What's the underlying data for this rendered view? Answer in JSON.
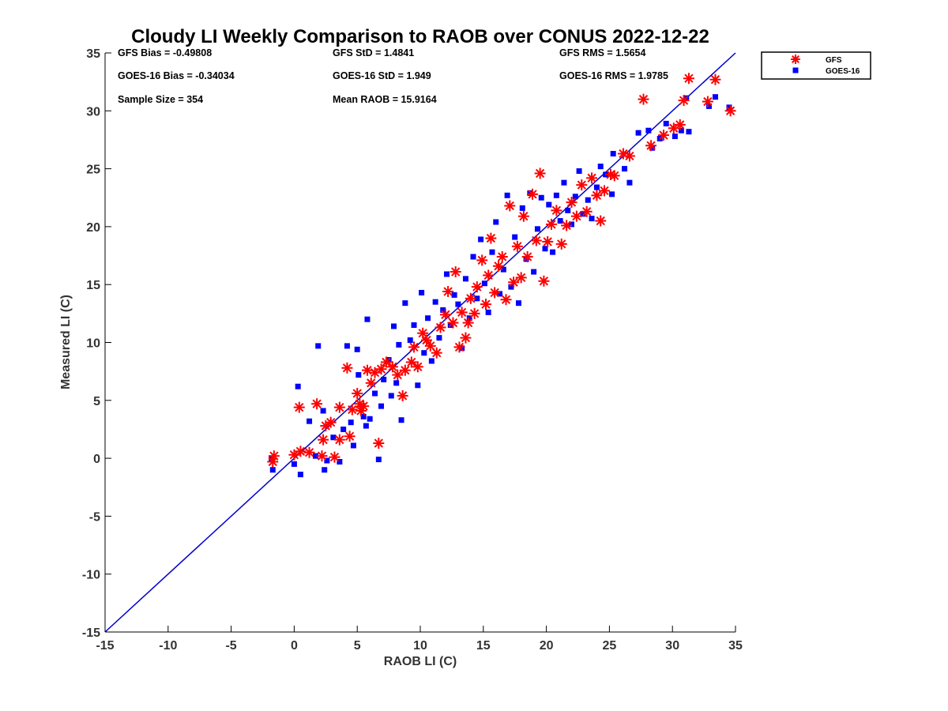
{
  "chart_data": {
    "type": "scatter",
    "title": "Cloudy LI Weekly Comparison to RAOB over CONUS 2022-12-22",
    "xlabel": "RAOB LI (C)",
    "ylabel": "Measured LI (C)",
    "xlim": [
      -15,
      35
    ],
    "ylim": [
      -15,
      35
    ],
    "xticks": [
      "-15",
      "-10",
      "-5",
      "0",
      "5",
      "10",
      "15",
      "20",
      "25",
      "30",
      "35"
    ],
    "yticks": [
      "-15",
      "-10",
      "-5",
      "0",
      "5",
      "10",
      "15",
      "20",
      "25",
      "30",
      "35"
    ],
    "grid": false,
    "legend_position": "outside top-right",
    "stats": {
      "gfs_bias": "GFS Bias = -0.49808",
      "goes_bias": "GOES-16 Bias = -0.34034",
      "sample_size": "Sample Size = 354",
      "gfs_std": "GFS StD = 1.4841",
      "goes_std": "GOES-16 StD = 1.949",
      "mean_raob": "Mean RAOB = 15.9164",
      "gfs_rms": "GFS RMS = 1.5654",
      "goes_rms": "GOES-16 RMS = 1.9785"
    },
    "reference_line": {
      "x": [
        -15,
        35
      ],
      "y": [
        -15,
        35
      ],
      "color": "#0000cc"
    },
    "series": [
      {
        "name": "GFS",
        "marker": "asterisk",
        "color": "#ff0000",
        "points": [
          [
            -1.7,
            -0.3
          ],
          [
            -1.6,
            0.2
          ],
          [
            0,
            0.3
          ],
          [
            0.4,
            4.4
          ],
          [
            0.5,
            0.6
          ],
          [
            1.2,
            0.5
          ],
          [
            1.8,
            4.7
          ],
          [
            2.2,
            0.2
          ],
          [
            2.3,
            1.6
          ],
          [
            2.5,
            2.8
          ],
          [
            2.9,
            3.1
          ],
          [
            3.2,
            0.1
          ],
          [
            3.6,
            4.4
          ],
          [
            3.6,
            1.6
          ],
          [
            4.2,
            7.8
          ],
          [
            4.4,
            1.9
          ],
          [
            4.6,
            4.2
          ],
          [
            5,
            5.6
          ],
          [
            5.2,
            4.7
          ],
          [
            5.3,
            4.1
          ],
          [
            5.5,
            4.5
          ],
          [
            5.8,
            7.6
          ],
          [
            6.1,
            6.5
          ],
          [
            6.4,
            7.4
          ],
          [
            6.7,
            1.3
          ],
          [
            6.9,
            7.7
          ],
          [
            7.3,
            8.3
          ],
          [
            7.8,
            7.9
          ],
          [
            8.2,
            7.2
          ],
          [
            8.6,
            5.4
          ],
          [
            8.8,
            7.6
          ],
          [
            9.3,
            8.3
          ],
          [
            9.5,
            9.6
          ],
          [
            9.8,
            7.9
          ],
          [
            10.2,
            10.8
          ],
          [
            10.5,
            10.2
          ],
          [
            10.8,
            9.7
          ],
          [
            11.3,
            9.1
          ],
          [
            11.6,
            11.3
          ],
          [
            12,
            12.4
          ],
          [
            12.2,
            14.4
          ],
          [
            12.6,
            11.7
          ],
          [
            12.8,
            16.1
          ],
          [
            13.1,
            9.6
          ],
          [
            13.3,
            12.6
          ],
          [
            13.6,
            10.4
          ],
          [
            13.8,
            11.7
          ],
          [
            14,
            13.8
          ],
          [
            14.3,
            12.5
          ],
          [
            14.5,
            14.8
          ],
          [
            14.9,
            17.1
          ],
          [
            15.2,
            13.3
          ],
          [
            15.4,
            15.8
          ],
          [
            15.6,
            19
          ],
          [
            15.9,
            14.3
          ],
          [
            16.2,
            16.6
          ],
          [
            16.5,
            17.4
          ],
          [
            16.8,
            13.7
          ],
          [
            17.1,
            21.8
          ],
          [
            17.4,
            15.2
          ],
          [
            17.7,
            18.3
          ],
          [
            18,
            15.6
          ],
          [
            18.2,
            20.9
          ],
          [
            18.5,
            17.4
          ],
          [
            18.9,
            22.8
          ],
          [
            19.2,
            18.8
          ],
          [
            19.5,
            24.6
          ],
          [
            19.8,
            15.3
          ],
          [
            20.1,
            18.7
          ],
          [
            20.4,
            20.2
          ],
          [
            20.8,
            21.4
          ],
          [
            21.2,
            18.5
          ],
          [
            21.6,
            20.1
          ],
          [
            22,
            22.1
          ],
          [
            22.4,
            20.9
          ],
          [
            22.8,
            23.6
          ],
          [
            23.2,
            21.3
          ],
          [
            23.6,
            24.2
          ],
          [
            24,
            22.7
          ],
          [
            24.3,
            20.5
          ],
          [
            24.6,
            23.1
          ],
          [
            25.1,
            24.5
          ],
          [
            25.4,
            24.4
          ],
          [
            26.1,
            26.3
          ],
          [
            26.6,
            26.1
          ],
          [
            27.7,
            31
          ],
          [
            28.3,
            27
          ],
          [
            29.3,
            27.9
          ],
          [
            30.1,
            28.5
          ],
          [
            30.6,
            28.8
          ],
          [
            30.9,
            30.9
          ],
          [
            31.3,
            32.8
          ],
          [
            32.8,
            30.8
          ],
          [
            33.4,
            32.7
          ],
          [
            34.6,
            30
          ]
        ]
      },
      {
        "name": "GOES-16",
        "marker": "square",
        "color": "#0000ff",
        "points": [
          [
            -1.8,
            -0.1
          ],
          [
            -1.7,
            -1
          ],
          [
            0,
            -0.5
          ],
          [
            0.3,
            6.2
          ],
          [
            0.5,
            -1.4
          ],
          [
            1.2,
            3.2
          ],
          [
            1.7,
            0.2
          ],
          [
            1.9,
            9.7
          ],
          [
            2.3,
            4.1
          ],
          [
            2.4,
            -1
          ],
          [
            2.6,
            -0.2
          ],
          [
            3.1,
            1.8
          ],
          [
            3.6,
            -0.3
          ],
          [
            3.9,
            2.5
          ],
          [
            4.2,
            9.7
          ],
          [
            4.5,
            3.1
          ],
          [
            4.7,
            1.1
          ],
          [
            5,
            9.4
          ],
          [
            5.1,
            7.2
          ],
          [
            5.5,
            3.6
          ],
          [
            5.7,
            2.8
          ],
          [
            5.8,
            12
          ],
          [
            6,
            3.4
          ],
          [
            6.4,
            5.6
          ],
          [
            6.7,
            -0.1
          ],
          [
            6.9,
            4.5
          ],
          [
            7.1,
            6.8
          ],
          [
            7.5,
            8.5
          ],
          [
            7.7,
            5.4
          ],
          [
            7.9,
            11.4
          ],
          [
            8.1,
            6.5
          ],
          [
            8.3,
            9.8
          ],
          [
            8.5,
            3.3
          ],
          [
            8.8,
            13.4
          ],
          [
            9.2,
            10.2
          ],
          [
            9.5,
            11.5
          ],
          [
            9.8,
            6.3
          ],
          [
            10.1,
            14.3
          ],
          [
            10.3,
            9.1
          ],
          [
            10.6,
            12.1
          ],
          [
            10.9,
            8.4
          ],
          [
            11.2,
            13.5
          ],
          [
            11.5,
            10.4
          ],
          [
            11.8,
            12.8
          ],
          [
            12.1,
            15.9
          ],
          [
            12.4,
            11.5
          ],
          [
            12.7,
            14.1
          ],
          [
            13,
            13.3
          ],
          [
            13.3,
            9.5
          ],
          [
            13.6,
            15.5
          ],
          [
            13.9,
            12.1
          ],
          [
            14.2,
            17.4
          ],
          [
            14.5,
            13.8
          ],
          [
            14.8,
            18.9
          ],
          [
            15.1,
            15.1
          ],
          [
            15.4,
            12.6
          ],
          [
            15.7,
            17.8
          ],
          [
            16,
            20.4
          ],
          [
            16.3,
            14.2
          ],
          [
            16.6,
            16.3
          ],
          [
            16.9,
            22.7
          ],
          [
            17.2,
            14.8
          ],
          [
            17.5,
            19.1
          ],
          [
            17.8,
            13.4
          ],
          [
            18.1,
            21.6
          ],
          [
            18.4,
            17.2
          ],
          [
            18.7,
            22.9
          ],
          [
            19,
            16.1
          ],
          [
            19.3,
            19.8
          ],
          [
            19.6,
            22.5
          ],
          [
            19.9,
            18.1
          ],
          [
            20.2,
            21.9
          ],
          [
            20.5,
            17.8
          ],
          [
            20.8,
            22.7
          ],
          [
            21.1,
            20.5
          ],
          [
            21.4,
            23.8
          ],
          [
            21.7,
            21.4
          ],
          [
            22,
            20.2
          ],
          [
            22.3,
            22.6
          ],
          [
            22.6,
            24.8
          ],
          [
            22.9,
            21.1
          ],
          [
            23.3,
            22.3
          ],
          [
            23.6,
            20.7
          ],
          [
            24,
            23.4
          ],
          [
            24.3,
            25.2
          ],
          [
            24.7,
            24.5
          ],
          [
            25.2,
            22.8
          ],
          [
            25.3,
            26.3
          ],
          [
            26.2,
            25
          ],
          [
            26.6,
            23.8
          ],
          [
            27.3,
            28.1
          ],
          [
            28.1,
            28.3
          ],
          [
            28.4,
            26.8
          ],
          [
            29,
            27.6
          ],
          [
            29.5,
            28.9
          ],
          [
            30.2,
            27.8
          ],
          [
            30.7,
            28.3
          ],
          [
            31.1,
            31.1
          ],
          [
            31.3,
            28.2
          ],
          [
            32.9,
            30.4
          ],
          [
            33.4,
            31.2
          ],
          [
            34.5,
            30.3
          ]
        ]
      }
    ]
  }
}
